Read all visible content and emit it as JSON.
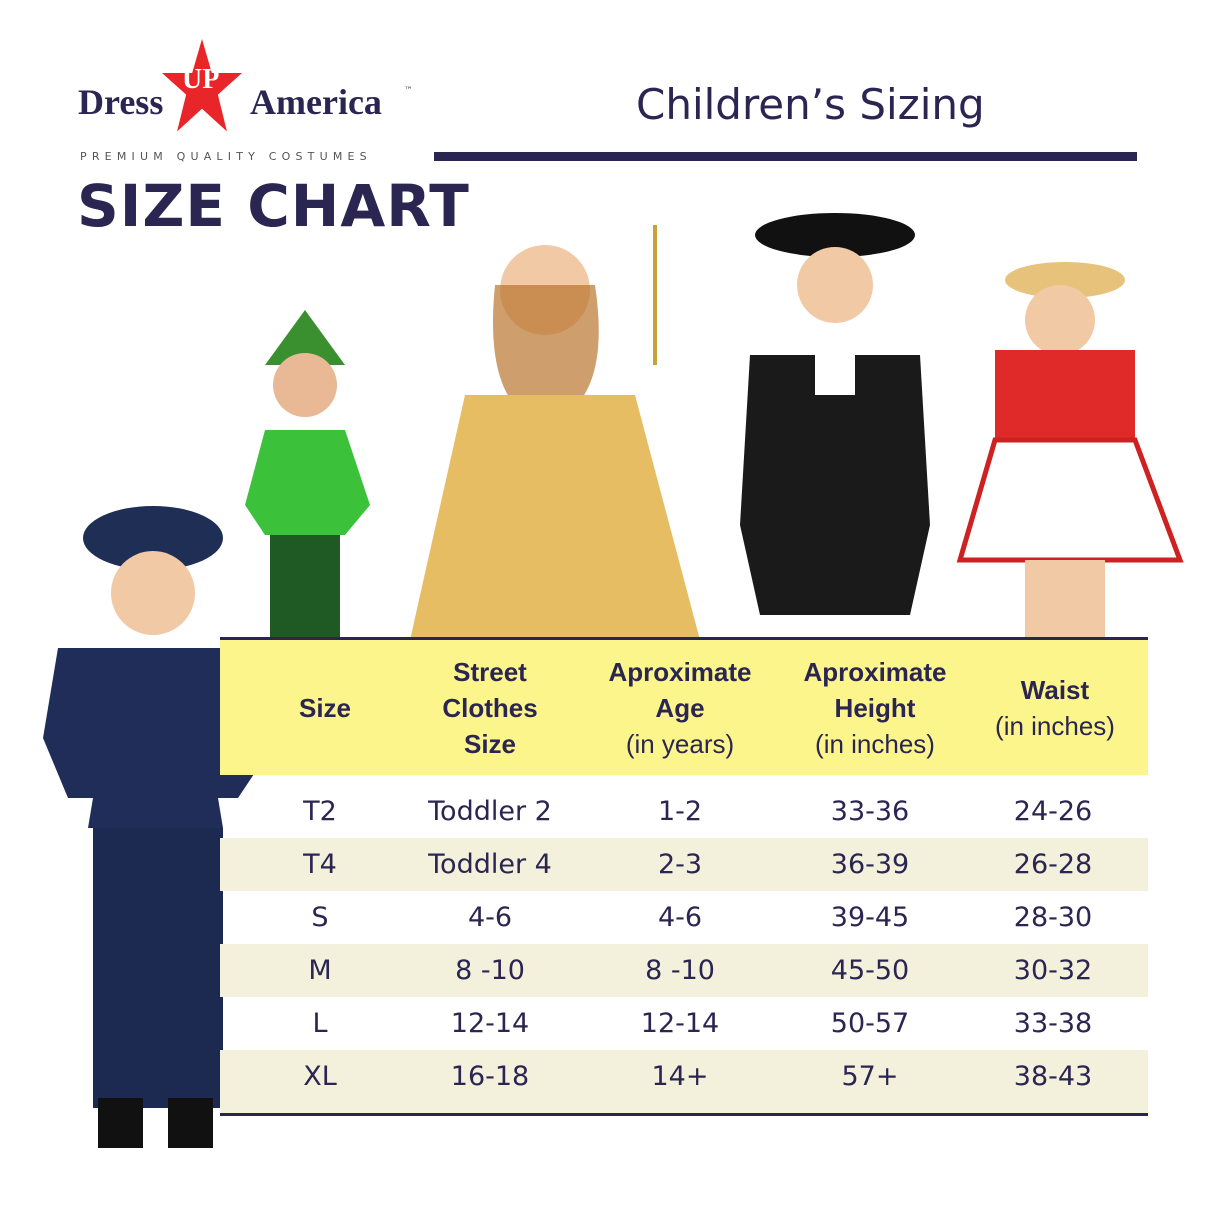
{
  "brand": {
    "word1": "Dress",
    "word_star": "UP",
    "word2": "America",
    "tm": "™",
    "tagline": "PREMIUM QUALITY COSTUMES",
    "star_color": "#e8262a"
  },
  "heading": {
    "size_chart": "SIZE CHART",
    "title": "Children’s Sizing"
  },
  "colors": {
    "navy": "#2b2552",
    "header_bg": "#fbf58c",
    "alt_row": "#f3f1dc"
  },
  "table": {
    "headers": [
      {
        "bold": "Size",
        "sub": ""
      },
      {
        "bold": "Street Clothes Size",
        "sub": ""
      },
      {
        "bold": "Aproximate Age",
        "sub": "(in years)"
      },
      {
        "bold": "Aproximate Height",
        "sub": "(in inches)"
      },
      {
        "bold": "Waist",
        "sub": "(in inches)"
      }
    ],
    "rows": [
      [
        "T2",
        "Toddler 2",
        "1-2",
        "33-36",
        "24-26"
      ],
      [
        "T4",
        "Toddler 4",
        "2-3",
        "36-39",
        "26-28"
      ],
      [
        "S",
        "4-6",
        "4-6",
        "39-45",
        "28-30"
      ],
      [
        "M",
        "8 -10",
        "8 -10",
        "45-50",
        "30-32"
      ],
      [
        "L",
        "12-14",
        "12-14",
        "50-57",
        "33-38"
      ],
      [
        "XL",
        "16-18",
        "14+",
        "57+",
        "38-43"
      ]
    ]
  }
}
